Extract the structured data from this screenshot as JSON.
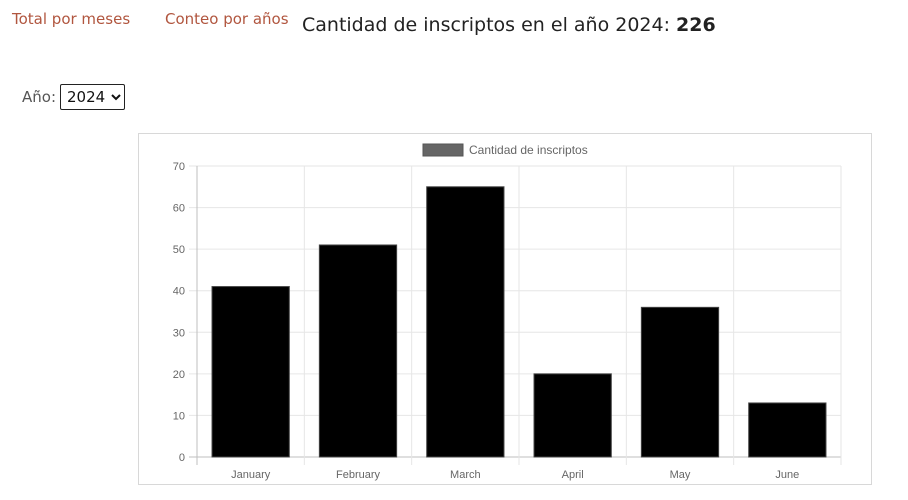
{
  "nav": {
    "monthly_label": "Total por meses",
    "yearly_label": "Conteo por años"
  },
  "header": {
    "title_prefix": "Cantidad de inscriptos en el año 2024:",
    "total": "226"
  },
  "filter": {
    "year_label": "Año:",
    "selected_year": "2024"
  },
  "colors": {
    "link": "#b1563f",
    "bar": "#000000",
    "legend_swatch": "#666666"
  },
  "chart_data": {
    "type": "bar",
    "categories": [
      "January",
      "February",
      "March",
      "April",
      "May",
      "June"
    ],
    "series": [
      {
        "name": "Cantidad de inscriptos",
        "values": [
          41,
          51,
          65,
          20,
          36,
          13
        ]
      }
    ],
    "xlabel": "",
    "ylabel": "",
    "ylim": [
      0,
      70
    ],
    "yticks": [
      0,
      10,
      20,
      30,
      40,
      50,
      60,
      70
    ],
    "grid": true,
    "legend": "top"
  }
}
